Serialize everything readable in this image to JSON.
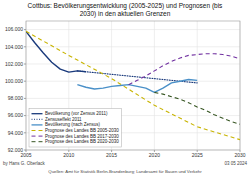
{
  "chart_data": {
    "type": "line",
    "title": "Cottbus: Bevölkerungsentwicklung (2005-2025) und Prognosen (bis\n2030) in den aktuellen Grenzen",
    "xlim": [
      2005,
      2030
    ],
    "ylim": [
      92000,
      107000
    ],
    "xticks": [
      2005,
      2010,
      2015,
      2020,
      2025,
      2030
    ],
    "yticks": [
      {
        "value": 92000,
        "label": "92.000"
      },
      {
        "value": 94000,
        "label": "94.000"
      },
      {
        "value": 96000,
        "label": "96.000"
      },
      {
        "value": 98000,
        "label": "98.000"
      },
      {
        "value": 100000,
        "label": "100.000"
      },
      {
        "value": 102000,
        "label": "102.000"
      },
      {
        "value": 104000,
        "label": "104.000"
      },
      {
        "value": 106000,
        "label": "106.000"
      }
    ],
    "grid": true,
    "legend": "lower left",
    "series": [
      {
        "name": "Bevölkerung (vor Zensus 2011)",
        "color": "#1a3a7c",
        "line_style": "solid",
        "x": [
          2005,
          2006,
          2007,
          2008,
          2009,
          2010,
          2011,
          2012
        ],
        "values": [
          105800,
          104500,
          103300,
          102200,
          101400,
          101050,
          101200,
          101100
        ]
      },
      {
        "name": "Zensuseffekt 2011",
        "color": "#1a3a7c",
        "line_style": "dotted",
        "x": [
          2011,
          2012,
          2013,
          2014,
          2015,
          2016,
          2017,
          2018,
          2019,
          2020,
          2021,
          2022,
          2023,
          2024,
          2025
        ],
        "values": [
          101200,
          101100,
          101000,
          100900,
          100800,
          100700,
          100600,
          100500,
          100400,
          100300,
          100200,
          100100,
          100000,
          99900,
          99800
        ]
      },
      {
        "name": "Bevölkerung (nach Zensus)",
        "color": "#4a90c8",
        "line_style": "solid",
        "x": [
          2011,
          2012,
          2013,
          2014,
          2015,
          2016,
          2017,
          2018,
          2019,
          2020,
          2021,
          2022,
          2023,
          2024,
          2025
        ],
        "values": [
          99600,
          99300,
          99100,
          99200,
          99400,
          99500,
          99600,
          99400,
          99200,
          98700,
          99200,
          99800,
          100000,
          100200,
          100100
        ]
      },
      {
        "name": "Prognose des Landes BB 2005-2030",
        "color": "#c8b400",
        "line_style": "dashed",
        "x": [
          2005,
          2010,
          2015,
          2020,
          2025,
          2030
        ],
        "values": [
          105800,
          103000,
          100300,
          97200,
          94700,
          93200
        ]
      },
      {
        "name": "Prognose des Landes BB 2017-2030",
        "color": "#7030a0",
        "line_style": "dashed",
        "x": [
          2017,
          2018,
          2019,
          2020,
          2021,
          2022,
          2023,
          2024,
          2025,
          2026,
          2027,
          2028,
          2029,
          2030
        ],
        "values": [
          99600,
          100100,
          100600,
          101200,
          101800,
          102300,
          102700,
          103000,
          103100,
          103200,
          103200,
          103100,
          102900,
          102600
        ]
      },
      {
        "name": "Prognose des Landes BB 2020-2030",
        "color": "#375623",
        "line_style": "dashed",
        "x": [
          2020,
          2021,
          2022,
          2023,
          2024,
          2025,
          2026,
          2027,
          2028,
          2029,
          2030
        ],
        "values": [
          98700,
          98500,
          98200,
          97900,
          97500,
          97000,
          96600,
          96100,
          95700,
          95300,
          95000
        ]
      }
    ],
    "annotations": [
      "by Hans G. Oberlack",
      "03 05 2024",
      "Quellen: Amt für Statistik Berlin-Brandenburg; Landesamt für Bauen und Verkehr"
    ]
  }
}
